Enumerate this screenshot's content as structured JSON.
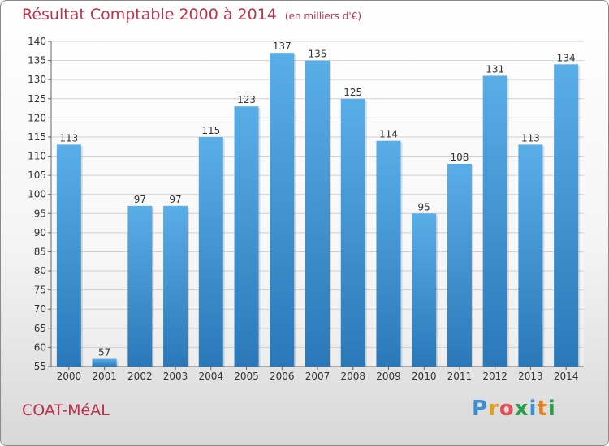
{
  "header": {
    "title": "Résultat Comptable 2000 à 2014",
    "subtitle": "(en milliers d'€)"
  },
  "footer": {
    "location": "COAT-MéAL",
    "logo": "Proxiti"
  },
  "colors": {
    "title": "#c0304a",
    "bar_top": "#5aaee8",
    "bar_bottom": "#2a78b8",
    "grid": "#d0d0d0"
  },
  "chart_data": {
    "type": "bar",
    "categories": [
      "2000",
      "2001",
      "2002",
      "2003",
      "2004",
      "2005",
      "2006",
      "2007",
      "2008",
      "2009",
      "2010",
      "2011",
      "2012",
      "2013",
      "2014"
    ],
    "values": [
      113,
      57,
      97,
      97,
      115,
      123,
      137,
      135,
      125,
      114,
      95,
      108,
      131,
      113,
      134
    ],
    "ylim": [
      55,
      140
    ],
    "yticks": [
      55,
      60,
      65,
      70,
      75,
      80,
      85,
      90,
      95,
      100,
      105,
      110,
      115,
      120,
      125,
      130,
      135,
      140
    ],
    "grid": true
  }
}
